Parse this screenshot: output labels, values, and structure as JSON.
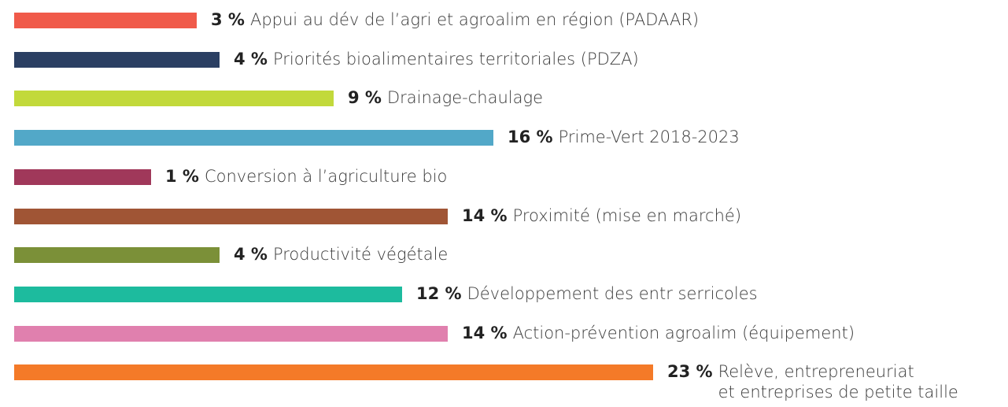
{
  "chart_data": {
    "type": "bar",
    "orientation": "horizontal",
    "categories": [
      "Appui au dév de l’agri et agroalim en région (PADAAR)",
      "Priorités bioalimentaires territoriales (PDZA)",
      "Drainage-chaulage",
      "Prime-Vert 2018-2023",
      "Conversion à l’agriculture bio",
      "Proximité (mise en marché)",
      "Productivité végétale",
      "Développement des entr serricoles",
      "Action-prévention agroalim (équipement)",
      "Relève, entrepreneuriat\net entreprises de petite taille"
    ],
    "values": [
      3,
      4,
      9,
      16,
      1,
      14,
      4,
      12,
      14,
      23
    ],
    "value_labels": [
      "3 %",
      "4 %",
      "9 %",
      "16 %",
      "1 %",
      "14 %",
      "4 %",
      "12 %",
      "14 %",
      "23 %"
    ],
    "colors": [
      "#f05a4a",
      "#2b3f63",
      "#c2d93b",
      "#52a8c8",
      "#a0385a",
      "#a05535",
      "#7b9038",
      "#1dbb9e",
      "#e080ae",
      "#f47a28"
    ],
    "xlim": [
      -5,
      23
    ]
  }
}
